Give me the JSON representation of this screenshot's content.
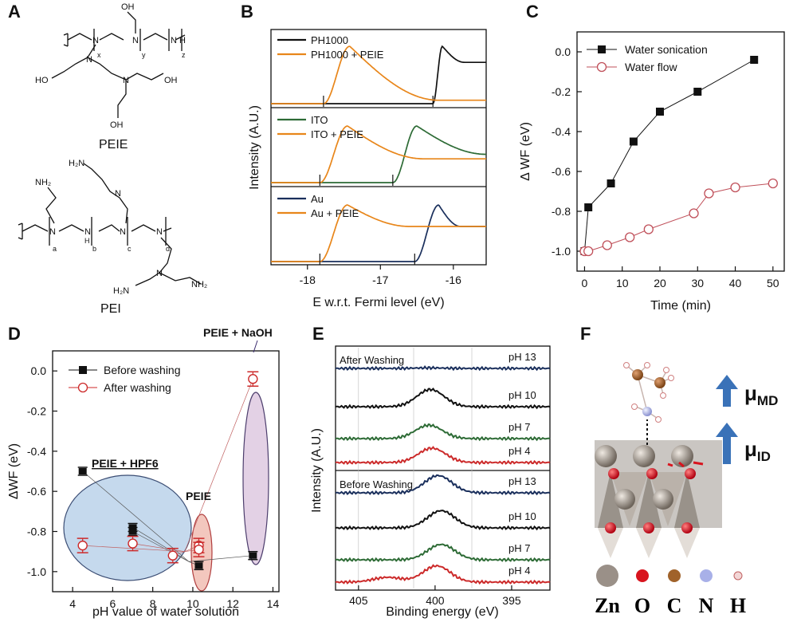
{
  "panels": {
    "A": "A",
    "B": "B",
    "C": "C",
    "D": "D",
    "E": "E",
    "F": "F"
  },
  "panel_a": {
    "peie": {
      "name": "PEIE",
      "oh": "OH",
      "ho": "HO",
      "n": "N",
      "x": "x",
      "y": "y",
      "z": "z",
      "nh": "N H"
    },
    "pei": {
      "name": "PEI",
      "nh2": "NH₂",
      "h2n": "H₂N",
      "n": "N",
      "h": "H",
      "a": "a",
      "b": "b",
      "c": "c",
      "d": "d"
    }
  },
  "chart_data": [
    {
      "id": "B",
      "type": "line",
      "xlabel": "E w.r.t. Fermi level (eV)",
      "ylabel": "Intensity (A.U.)",
      "xlim": [
        -18.5,
        -15.55
      ],
      "xticks": [
        -18,
        -17,
        -16
      ],
      "xtick_labels": [
        "-18",
        "-17",
        "-16"
      ],
      "subplots": [
        {
          "name": "PH1000",
          "series": [
            {
              "name": "PH1000",
              "color": "#111111",
              "onset": -16.28,
              "peak": -16.15,
              "fall": -15.85,
              "plateau": 0.72
            },
            {
              "name": "PH1000 + PEIE",
              "color": "#e8861a",
              "onset": -17.78,
              "peak": -17.42,
              "fall": -16.2,
              "plateau": 0.06
            }
          ]
        },
        {
          "name": "ITO",
          "series": [
            {
              "name": "ITO",
              "color": "#2d6b35",
              "onset": -16.83,
              "peak": -16.5,
              "fall": -15.55,
              "plateau": 0.5
            },
            {
              "name": "ITO + PEIE",
              "color": "#e8861a",
              "onset": -17.83,
              "peak": -17.45,
              "fall": -16.4,
              "plateau": 0.42
            }
          ]
        },
        {
          "name": "Au",
          "series": [
            {
              "name": "Au",
              "color": "#1a2f5c",
              "onset": -16.53,
              "peak": -16.2,
              "fall": -15.9,
              "plateau": 0.62
            },
            {
              "name": "Au + PEIE",
              "color": "#e8861a",
              "onset": -17.83,
              "peak": -17.45,
              "fall": -16.6,
              "plateau": 0.62
            }
          ]
        }
      ]
    },
    {
      "id": "C",
      "type": "line",
      "xlabel": "Time (min)",
      "ylabel": "Δ WF (eV)",
      "xlim": [
        -2,
        53
      ],
      "ylim": [
        -1.1,
        0.1
      ],
      "xticks": [
        0,
        10,
        20,
        30,
        40,
        50
      ],
      "xtick_labels": [
        "0",
        "10",
        "20",
        "30",
        "40",
        "50"
      ],
      "yticks": [
        0.0,
        -0.2,
        -0.4,
        -0.6,
        -0.8,
        -1.0
      ],
      "ytick_labels": [
        "0.0",
        "-0.2",
        "-0.4",
        "-0.6",
        "-0.8",
        "-1.0"
      ],
      "series": [
        {
          "name": "Water sonication",
          "color": "#111111",
          "marker": "filled-square",
          "x": [
            0,
            1,
            7,
            13,
            20,
            30,
            45
          ],
          "y": [
            -1.0,
            -0.78,
            -0.66,
            -0.45,
            -0.3,
            -0.2,
            -0.04
          ]
        },
        {
          "name": "Water flow",
          "color": "#c0505a",
          "marker": "open-circle",
          "x": [
            0,
            1,
            6,
            12,
            17,
            29,
            33,
            40,
            50
          ],
          "y": [
            -1.0,
            -1.0,
            -0.97,
            -0.93,
            -0.89,
            -0.81,
            -0.71,
            -0.68,
            -0.66
          ]
        }
      ]
    },
    {
      "id": "D",
      "type": "scatter",
      "xlabel": "pH value of water solution",
      "ylabel": "ΔWF (eV)",
      "xlim": [
        3.0,
        14.3
      ],
      "ylim": [
        -1.1,
        0.1
      ],
      "xticks": [
        4,
        6,
        8,
        10,
        12,
        14
      ],
      "xtick_labels": [
        "4",
        "6",
        "8",
        "10",
        "12",
        "14"
      ],
      "yticks": [
        0.0,
        -0.2,
        -0.4,
        -0.6,
        -0.8,
        -1.0
      ],
      "ytick_labels": [
        "0.0",
        "-0.2",
        "-0.4",
        "-0.6",
        "-0.8",
        "-1.0"
      ],
      "series": [
        {
          "name": "Before washing",
          "color": "#111111",
          "marker": "filled-square",
          "x": [
            4.5,
            7.0,
            7.0,
            10.3,
            13.0
          ],
          "y": [
            -0.5,
            -0.78,
            -0.8,
            -0.97,
            -0.92
          ]
        },
        {
          "name": "After washing",
          "color": "#cc2a2a",
          "marker": "open-circle",
          "x": [
            4.5,
            7.0,
            9.0,
            10.3,
            10.3,
            13.0
          ],
          "y": [
            -0.87,
            -0.86,
            -0.92,
            -0.87,
            -0.89,
            -0.04
          ]
        }
      ],
      "annotations": [
        {
          "text": "PEIE + HPF6",
          "color": "#1a3a8c"
        },
        {
          "text": "PEIE",
          "color": "#cc2a2a"
        },
        {
          "text": "PEIE + NaOH",
          "color": "#3a2a6e"
        }
      ]
    },
    {
      "id": "E",
      "type": "line",
      "xlabel": "Binding energy (eV)",
      "ylabel": "Intensity (A.U.)",
      "xlim": [
        406.5,
        392.5
      ],
      "xticks": [
        405,
        400,
        395
      ],
      "xtick_labels": [
        "405",
        "400",
        "395"
      ],
      "groups": [
        {
          "name": "After Washing",
          "series": [
            {
              "name": "pH 13",
              "color": "#1a2f5c",
              "peak": 400.4,
              "amp": 0.03,
              "shoulder": 0
            },
            {
              "name": "pH 10",
              "color": "#111111",
              "peak": 400.3,
              "amp": 0.9,
              "shoulder": 0
            },
            {
              "name": "pH 7",
              "color": "#2d6b35",
              "peak": 400.4,
              "amp": 0.7,
              "shoulder": 0
            },
            {
              "name": "pH 4",
              "color": "#cc2a2a",
              "peak": 400.2,
              "amp": 0.75,
              "shoulder": 0
            }
          ]
        },
        {
          "name": "Before Washing",
          "series": [
            {
              "name": "pH 13",
              "color": "#1a2f5c",
              "peak": 399.8,
              "amp": 0.9,
              "shoulder": 0
            },
            {
              "name": "pH 10",
              "color": "#111111",
              "peak": 399.6,
              "amp": 0.9,
              "shoulder": 0
            },
            {
              "name": "pH 7",
              "color": "#2d6b35",
              "peak": 399.6,
              "amp": 0.8,
              "shoulder": 0
            },
            {
              "name": "pH 4",
              "color": "#cc2a2a",
              "peak": 399.9,
              "amp": 0.85,
              "shoulder": 0.25
            }
          ]
        }
      ]
    }
  ],
  "panel_f": {
    "mu_md": "μ",
    "mu_md_sub": "MD",
    "mu_id": "μ",
    "mu_id_sub": "ID",
    "legend": [
      {
        "label": "Zn",
        "color": "#9a9088"
      },
      {
        "label": "O",
        "color": "#d8141e"
      },
      {
        "label": "C",
        "color": "#a0622a"
      },
      {
        "label": "N",
        "color": "#a8b0e8"
      },
      {
        "label": "H",
        "color": "#f2d6d6"
      }
    ]
  }
}
